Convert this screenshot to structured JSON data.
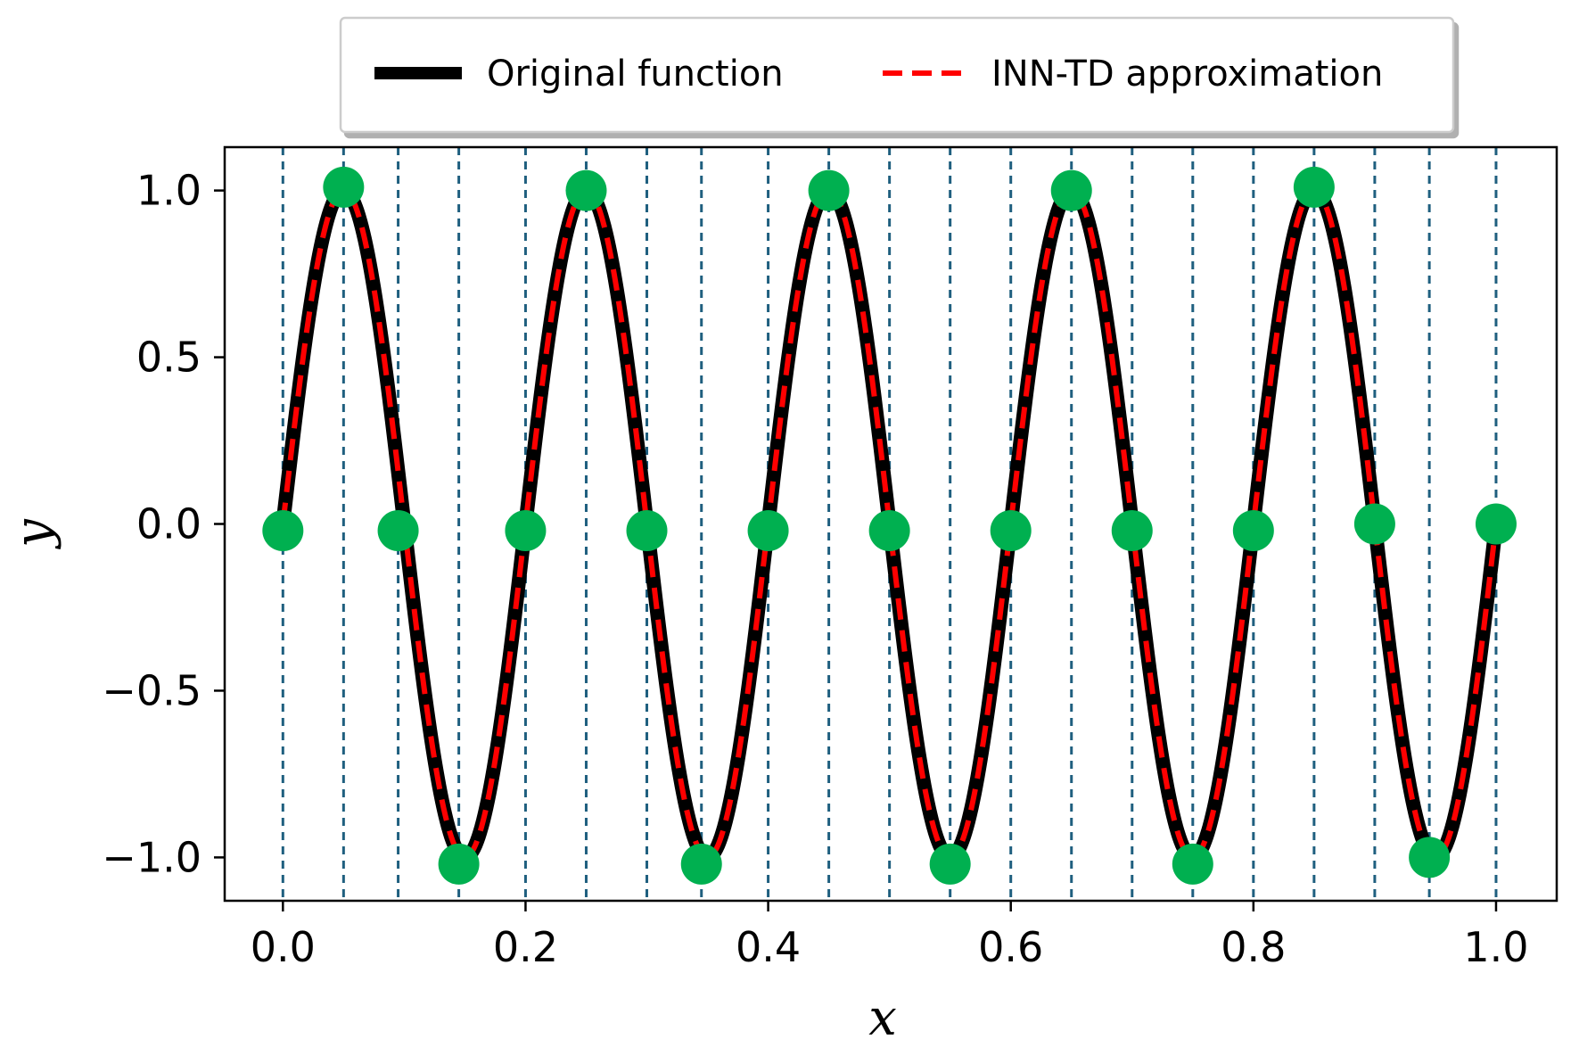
{
  "chart_data": {
    "type": "line",
    "title": "",
    "xlabel": "x",
    "ylabel": "y",
    "xlim": [
      -0.048,
      1.05
    ],
    "ylim": [
      -1.13,
      1.13
    ],
    "xticks": [
      "0.0",
      "0.2",
      "0.4",
      "0.6",
      "0.8",
      "1.0"
    ],
    "yticks": [
      "−1.0",
      "−0.5",
      "0.0",
      "0.5",
      "1.0"
    ],
    "xtick_values": [
      0.0,
      0.2,
      0.4,
      0.6,
      0.8,
      1.0
    ],
    "ytick_values": [
      -1.0,
      -0.5,
      0.0,
      0.5,
      1.0
    ],
    "legend": {
      "placement": "top-center-outside"
    },
    "grid": false,
    "series": [
      {
        "name": "Original function",
        "function": "sin(10πx)",
        "x_range": [
          0,
          1
        ],
        "color": "#000000",
        "style": "solid"
      },
      {
        "name": "INN-TD approximation",
        "function": "sin(10πx)",
        "x_range": [
          0,
          1
        ],
        "color": "#ff0000",
        "style": "dashed"
      }
    ],
    "nodes": {
      "color": "#00b050",
      "x": [
        0.0,
        0.05,
        0.095,
        0.145,
        0.2,
        0.25,
        0.3,
        0.345,
        0.4,
        0.45,
        0.5,
        0.55,
        0.6,
        0.65,
        0.7,
        0.75,
        0.8,
        0.85,
        0.9,
        0.945,
        1.0
      ],
      "y": [
        -0.02,
        1.01,
        -0.02,
        -1.02,
        -0.02,
        1.0,
        -0.02,
        -1.02,
        -0.02,
        1.0,
        -0.02,
        -1.02,
        -0.02,
        1.0,
        -0.02,
        -1.02,
        -0.02,
        1.01,
        0.0,
        -1.0,
        0.0
      ]
    },
    "vertical_lines": {
      "color": "#1f5f7f",
      "style": "dashed",
      "x": [
        0.0,
        0.05,
        0.095,
        0.145,
        0.2,
        0.25,
        0.3,
        0.345,
        0.4,
        0.45,
        0.5,
        0.55,
        0.6,
        0.65,
        0.7,
        0.75,
        0.8,
        0.85,
        0.9,
        0.945,
        1.0
      ]
    }
  }
}
